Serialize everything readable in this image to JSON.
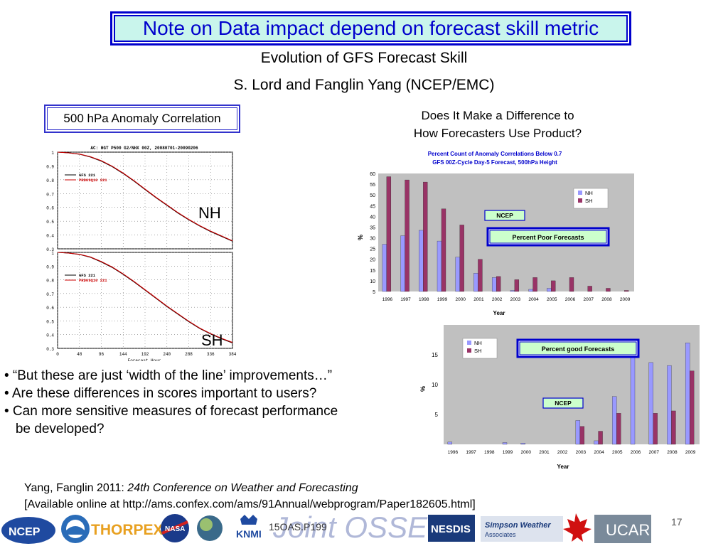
{
  "title": "Note on Data impact depend on forecast skill metric",
  "subtitle1": "Evolution of GFS Forecast Skill",
  "subtitle2": "S. Lord and Fanglin Yang  (NCEP/EMC)",
  "left_box": "500 hPa Anomaly Correlation",
  "question": {
    "line1": "Does It Make a Difference to",
    "line2": "How Forecasters Use Product?"
  },
  "nh_label": "NH",
  "sh_label": "SH",
  "bullets": [
    "• “But these are just ‘width of the line’ improvements…”",
    "• Are these differences in scores important to users?",
    "• Can more sensitive measures of forecast performance",
    "   be developed?"
  ],
  "reference": {
    "line1_plain": "Yang, Fanglin 2011: ",
    "line1_italic": "24th Conference on Weather and Forecasting",
    "line2": "[Available online at http://ams.confex.com/ams/91Annual/webprogram/Paper182605.html]"
  },
  "page_number": "17",
  "logos": {
    "ncep": "NCEP",
    "thorpex": "THORPEX",
    "nasa": "NASA",
    "knmi": "KNMI",
    "code": "15OAS.P199",
    "nesdis": "NESDIS",
    "simpson": "Simpson Weather Associates",
    "ucar": "UCAR"
  },
  "colors": {
    "nh": "#9999ff",
    "sh": "#993366",
    "title_blue": "#0000cc",
    "plot_bg": "#c0c0c0"
  },
  "chart_data": [
    {
      "type": "line",
      "title": "AC: HGT P500 G2/NHX 00Z, 20080701-20090206",
      "xlabel": "Forecast Hour",
      "x": [
        0,
        24,
        48,
        72,
        96,
        120,
        144,
        168,
        192,
        216,
        240,
        264,
        288,
        312,
        336,
        360,
        384
      ],
      "ylim": [
        0.3,
        1.0
      ],
      "yticks": [
        "1",
        "0.9",
        "0.8",
        "0.7",
        "0.6",
        "0.5",
        "0.4",
        "0.3"
      ],
      "series": [
        {
          "name": "GFS   221",
          "color": "#000000",
          "values": [
            1.0,
            0.995,
            0.985,
            0.965,
            0.935,
            0.895,
            0.845,
            0.79,
            0.73,
            0.67,
            0.615,
            0.56,
            0.51,
            0.465,
            0.425,
            0.39,
            0.355
          ]
        },
        {
          "name": "PRD09Q10   221",
          "color": "#cc0000",
          "values": [
            1.0,
            0.995,
            0.986,
            0.967,
            0.938,
            0.898,
            0.848,
            0.793,
            0.733,
            0.673,
            0.618,
            0.563,
            0.513,
            0.468,
            0.428,
            0.393,
            0.358
          ]
        }
      ]
    },
    {
      "type": "line",
      "xlabel": "Forecast Hour",
      "x": [
        0,
        24,
        48,
        72,
        96,
        120,
        144,
        168,
        192,
        216,
        240,
        264,
        288,
        312,
        336,
        360,
        384
      ],
      "xticks": [
        "0",
        "48",
        "96",
        "144",
        "192",
        "240",
        "288",
        "336",
        "384"
      ],
      "ylim": [
        0.3,
        1.0
      ],
      "yticks": [
        "1",
        "0.9",
        "0.8",
        "0.7",
        "0.6",
        "0.5",
        "0.4",
        "0.3"
      ],
      "series": [
        {
          "name": "GFS   221",
          "color": "#000000",
          "values": [
            1.0,
            0.995,
            0.985,
            0.965,
            0.93,
            0.89,
            0.84,
            0.785,
            0.725,
            0.665,
            0.605,
            0.55,
            0.495,
            0.445,
            0.405,
            0.37,
            0.34
          ]
        },
        {
          "name": "PRD09Q10   221",
          "color": "#cc0000",
          "values": [
            1.0,
            0.995,
            0.986,
            0.967,
            0.933,
            0.893,
            0.843,
            0.788,
            0.728,
            0.668,
            0.608,
            0.553,
            0.498,
            0.448,
            0.408,
            0.373,
            0.343
          ]
        }
      ]
    },
    {
      "type": "bar",
      "title": "Percent Count of Anomaly Correlations Below 0.7",
      "subtitle": "GFS 00Z-Cycle Day-5 Forecast,  500hPa Height",
      "xlabel": "Year",
      "ylabel": "%",
      "ylim": [
        5,
        60
      ],
      "yticks": [
        "60",
        "55",
        "50",
        "45",
        "40",
        "35",
        "30",
        "25",
        "20",
        "15",
        "10",
        "5"
      ],
      "categories": [
        "1996",
        "1997",
        "1998",
        "1999",
        "2000",
        "2001",
        "2002",
        "2003",
        "2004",
        "2005",
        "2006",
        "2007",
        "2008",
        "2009"
      ],
      "series": [
        {
          "name": "NH",
          "values": [
            27,
            31,
            33.5,
            28.5,
            21,
            13.5,
            11.5,
            5.5,
            6,
            6.5,
            5,
            5,
            5,
            5
          ]
        },
        {
          "name": "SH",
          "values": [
            58.5,
            57,
            56,
            43.5,
            36,
            20,
            12,
            10.5,
            11.5,
            10,
            11.5,
            7.5,
            6.5,
            5.5
          ]
        }
      ],
      "legend": "right",
      "annotations": [
        "NCEP",
        "Percent Poor Forecasts"
      ]
    },
    {
      "type": "bar",
      "xlabel": "Year",
      "ylabel": "%",
      "ylim": [
        0,
        20
      ],
      "yticks": [
        "15",
        "10",
        "5"
      ],
      "categories": [
        "1996",
        "1997",
        "1998",
        "1999",
        "2000",
        "2001",
        "2002",
        "2003",
        "2004",
        "2005",
        "2006",
        "2007",
        "2008",
        "2009"
      ],
      "series": [
        {
          "name": "NH",
          "values": [
            0.4,
            0,
            0,
            0.3,
            0.2,
            0,
            0,
            4,
            0.6,
            8,
            14.5,
            13.7,
            13.2,
            17
          ]
        },
        {
          "name": "SH",
          "values": [
            0,
            0,
            0,
            0,
            0,
            0,
            0,
            3,
            2.2,
            5.2,
            0,
            5.2,
            5.6,
            12.3
          ]
        }
      ],
      "legend": "top-left",
      "annotations": [
        "Percent good Forecasts",
        "NCEP"
      ]
    }
  ]
}
